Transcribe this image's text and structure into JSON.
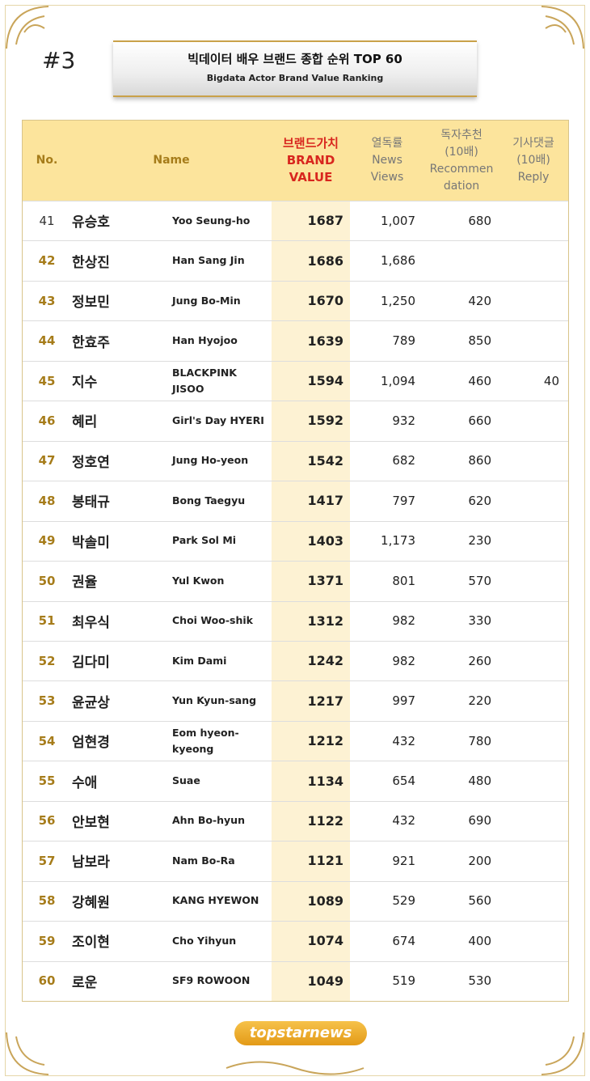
{
  "header": {
    "badge": "#3",
    "title": "빅데이터 배우 브랜드 종합 순위 TOP 60",
    "subtitle": "Bigdata Actor Brand Value Ranking"
  },
  "table": {
    "columns": {
      "no": "No.",
      "name": "Name",
      "brand": [
        "브랜드가치",
        "BRAND",
        "VALUE"
      ],
      "views": [
        "열독률",
        "News",
        "Views"
      ],
      "recommend": [
        "독자추천",
        "(10배)",
        "Recommen",
        "dation"
      ],
      "reply": [
        "기사댓글",
        "(10배)",
        "Reply"
      ]
    },
    "rows": [
      {
        "no": 41,
        "kr": "유승호",
        "en": [
          "Yoo Seung-ho"
        ],
        "brand": 1687,
        "views": "1,007",
        "recommend": 680,
        "reply": null
      },
      {
        "no": 42,
        "kr": "한상진",
        "en": [
          "Han Sang Jin"
        ],
        "brand": 1686,
        "views": "1,686",
        "recommend": null,
        "reply": null
      },
      {
        "no": 43,
        "kr": "정보민",
        "en": [
          "Jung Bo-Min"
        ],
        "brand": 1670,
        "views": "1,250",
        "recommend": 420,
        "reply": null
      },
      {
        "no": 44,
        "kr": "한효주",
        "en": [
          "Han Hyojoo"
        ],
        "brand": 1639,
        "views": "789",
        "recommend": 850,
        "reply": null
      },
      {
        "no": 45,
        "kr": "지수",
        "en": [
          "BLACKPINK",
          "JISOO"
        ],
        "brand": 1594,
        "views": "1,094",
        "recommend": 460,
        "reply": 40
      },
      {
        "no": 46,
        "kr": "혜리",
        "en": [
          "Girl's Day HYERI"
        ],
        "brand": 1592,
        "views": "932",
        "recommend": 660,
        "reply": null
      },
      {
        "no": 47,
        "kr": "정호연",
        "en": [
          "Jung Ho-yeon"
        ],
        "brand": 1542,
        "views": "682",
        "recommend": 860,
        "reply": null
      },
      {
        "no": 48,
        "kr": "봉태규",
        "en": [
          "Bong Taegyu"
        ],
        "brand": 1417,
        "views": "797",
        "recommend": 620,
        "reply": null
      },
      {
        "no": 49,
        "kr": "박솔미",
        "en": [
          "Park Sol Mi"
        ],
        "brand": 1403,
        "views": "1,173",
        "recommend": 230,
        "reply": null
      },
      {
        "no": 50,
        "kr": "권율",
        "en": [
          "Yul Kwon"
        ],
        "brand": 1371,
        "views": "801",
        "recommend": 570,
        "reply": null
      },
      {
        "no": 51,
        "kr": "최우식",
        "en": [
          "Choi Woo-shik"
        ],
        "brand": 1312,
        "views": "982",
        "recommend": 330,
        "reply": null
      },
      {
        "no": 52,
        "kr": "김다미",
        "en": [
          "Kim Dami"
        ],
        "brand": 1242,
        "views": "982",
        "recommend": 260,
        "reply": null
      },
      {
        "no": 53,
        "kr": "윤균상",
        "en": [
          "Yun Kyun-sang"
        ],
        "brand": 1217,
        "views": "997",
        "recommend": 220,
        "reply": null
      },
      {
        "no": 54,
        "kr": "엄현경",
        "en": [
          "Eom hyeon-",
          "kyeong"
        ],
        "brand": 1212,
        "views": "432",
        "recommend": 780,
        "reply": null
      },
      {
        "no": 55,
        "kr": "수애",
        "en": [
          "Suae"
        ],
        "brand": 1134,
        "views": "654",
        "recommend": 480,
        "reply": null
      },
      {
        "no": 56,
        "kr": "안보현",
        "en": [
          "Ahn Bo-hyun"
        ],
        "brand": 1122,
        "views": "432",
        "recommend": 690,
        "reply": null
      },
      {
        "no": 57,
        "kr": "남보라",
        "en": [
          "Nam Bo-Ra"
        ],
        "brand": 1121,
        "views": "921",
        "recommend": 200,
        "reply": null
      },
      {
        "no": 58,
        "kr": "강혜원",
        "en": [
          "KANG HYEWON"
        ],
        "brand": 1089,
        "views": "529",
        "recommend": 560,
        "reply": null
      },
      {
        "no": 59,
        "kr": "조이현",
        "en": [
          "Cho Yihyun"
        ],
        "brand": 1074,
        "views": "674",
        "recommend": 400,
        "reply": null
      },
      {
        "no": 60,
        "kr": "로운",
        "en": [
          "SF9 ROWOON"
        ],
        "brand": 1049,
        "views": "519",
        "recommend": 530,
        "reply": null
      }
    ]
  },
  "footer": {
    "logo": "topstarnews"
  }
}
